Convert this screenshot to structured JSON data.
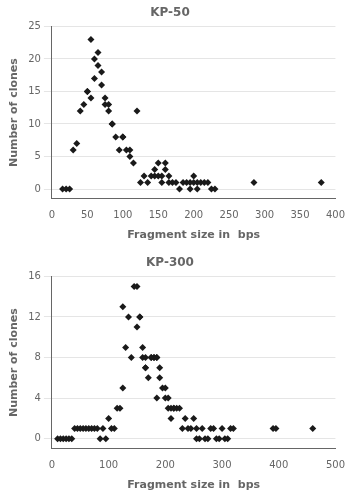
{
  "chart_data": [
    {
      "type": "scatter",
      "title": "KP-50",
      "xlabel": "Fragment size in  bps",
      "ylabel": "Number of clones",
      "x": [
        15,
        20,
        25,
        30,
        35,
        40,
        45,
        50,
        50,
        55,
        55,
        60,
        60,
        65,
        65,
        70,
        70,
        75,
        75,
        80,
        80,
        85,
        85,
        90,
        95,
        100,
        100,
        105,
        110,
        110,
        115,
        120,
        125,
        130,
        135,
        140,
        145,
        145,
        150,
        150,
        155,
        155,
        160,
        160,
        165,
        165,
        170,
        175,
        180,
        185,
        190,
        195,
        195,
        200,
        200,
        205,
        205,
        210,
        215,
        220,
        225,
        230,
        285,
        380
      ],
      "values": [
        0,
        0,
        0,
        6,
        7,
        12,
        13,
        15,
        15,
        14,
        23,
        17,
        20,
        19,
        21,
        16,
        18,
        13,
        14,
        12,
        13,
        10,
        10,
        8,
        6,
        8,
        8,
        6,
        5,
        6,
        4,
        12,
        1,
        2,
        1,
        2,
        2,
        3,
        2,
        4,
        1,
        2,
        3,
        4,
        1,
        2,
        1,
        1,
        0,
        1,
        1,
        0,
        1,
        1,
        2,
        0,
        1,
        1,
        1,
        1,
        0,
        0,
        1,
        1
      ],
      "color": "#1a1a1a",
      "marker": "diamond",
      "xlim": [
        0,
        400
      ],
      "ylim": [
        -1.5,
        25
      ],
      "xticks": [
        0,
        50,
        100,
        150,
        200,
        250,
        300,
        350,
        400
      ],
      "yticks": [
        0,
        5,
        10,
        15,
        20,
        25
      ],
      "grid": "y"
    },
    {
      "type": "scatter",
      "title": "KP-300",
      "xlabel": "Fragment size in  bps",
      "ylabel": "Number of clones",
      "x": [
        10,
        15,
        20,
        25,
        30,
        35,
        40,
        45,
        50,
        55,
        60,
        65,
        70,
        75,
        80,
        85,
        90,
        95,
        100,
        105,
        110,
        115,
        120,
        125,
        125,
        130,
        135,
        140,
        145,
        150,
        150,
        155,
        155,
        160,
        160,
        165,
        165,
        165,
        170,
        175,
        175,
        180,
        180,
        185,
        185,
        185,
        190,
        190,
        195,
        200,
        200,
        205,
        205,
        210,
        210,
        215,
        215,
        220,
        225,
        230,
        235,
        240,
        245,
        250,
        255,
        255,
        260,
        265,
        270,
        275,
        280,
        285,
        290,
        295,
        300,
        305,
        310,
        315,
        320,
        390,
        395,
        460
      ],
      "values": [
        0,
        0,
        0,
        0,
        0,
        0,
        1,
        1,
        1,
        1,
        1,
        1,
        1,
        1,
        1,
        0,
        1,
        0,
        2,
        1,
        1,
        3,
        3,
        5,
        13,
        9,
        12,
        8,
        15,
        15,
        11,
        12,
        12,
        8,
        9,
        7,
        7,
        8,
        6,
        8,
        8,
        8,
        8,
        4,
        8,
        8,
        6,
        7,
        5,
        4,
        5,
        3,
        4,
        2,
        3,
        3,
        3,
        3,
        3,
        1,
        2,
        1,
        1,
        2,
        1,
        0,
        0,
        1,
        0,
        0,
        1,
        1,
        0,
        0,
        1,
        0,
        0,
        1,
        1,
        1,
        1,
        1
      ],
      "color": "#1a1a1a",
      "marker": "diamond",
      "xlim": [
        0,
        500
      ],
      "ylim": [
        -1,
        16
      ],
      "xticks": [
        0,
        100,
        200,
        300,
        400,
        500
      ],
      "yticks": [
        0,
        4,
        8,
        12,
        16
      ],
      "grid": "y"
    }
  ]
}
